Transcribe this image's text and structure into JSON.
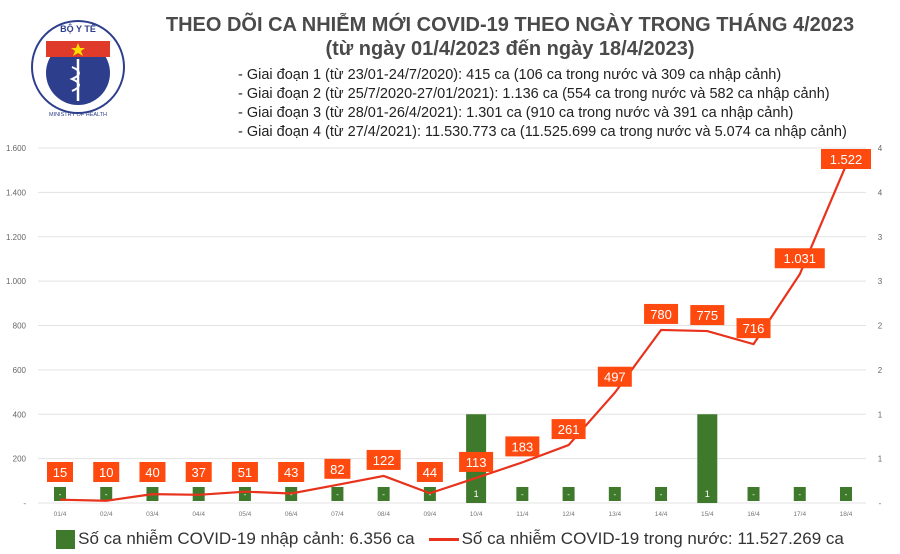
{
  "logo": {
    "top_text": "BỘ Y TẾ",
    "bottom_text": "MINISTRY OF HEALTH"
  },
  "title": "THEO DÕI CA NHIỄM MỚI COVID-19 THEO NGÀY TRONG THÁNG 4/2023",
  "subtitle": "(từ ngày 01/4/2023 đến ngày 18/4/2023)",
  "notes": [
    "- Giai đoạn 1 (từ 23/01-24/7/2020): 415 ca (106 ca trong nước và 309 ca nhập cảnh)",
    "- Giai đoạn 2 (từ 25/7/2020-27/01/2021): 1.136 ca (554 ca trong nước và 582 ca nhập cảnh)",
    "- Giai đoạn 3 (từ 28/01-26/4/2021): 1.301 ca (910 ca trong nước và 391 ca nhập cảnh)",
    "- Giai đoạn 4 (từ 27/4/2021): 11.530.773 ca (11.525.699 ca trong nước và 5.074 ca nhập cảnh)"
  ],
  "chart_data": {
    "type": "bar+line",
    "categories": [
      "01/4",
      "02/4",
      "03/4",
      "04/4",
      "05/4",
      "06/4",
      "07/4",
      "08/4",
      "09/4",
      "10/4",
      "11/4",
      "12/4",
      "13/4",
      "14/4",
      "15/4",
      "16/4",
      "17/4",
      "18/4"
    ],
    "series": [
      {
        "name": "Số ca nhiễm COVID-19 nhập cảnh: 6.356 ca",
        "type": "bar",
        "axis": "right",
        "color": "#3f7a2c",
        "values": [
          0,
          0,
          0,
          0,
          0,
          0,
          0,
          0,
          0,
          1,
          0,
          0,
          0,
          0,
          1,
          0,
          0,
          0
        ],
        "labels": [
          "-",
          "-",
          "-",
          "-",
          "-",
          "-",
          "-",
          "-",
          "-",
          "1",
          "-",
          "-",
          "-",
          "-",
          "1",
          "-",
          "-",
          "-"
        ]
      },
      {
        "name": "Số ca nhiễm COVID-19 trong nước: 11.527.269 ca",
        "type": "line",
        "axis": "left",
        "color": "#e8321c",
        "values": [
          15,
          10,
          40,
          37,
          51,
          43,
          82,
          122,
          44,
          113,
          183,
          261,
          497,
          780,
          775,
          716,
          1031,
          1522
        ],
        "labels": [
          "15",
          "10",
          "40",
          "37",
          "51",
          "43",
          "82",
          "122",
          "44",
          "113",
          "183",
          "261",
          "497",
          "780",
          "775",
          "716",
          "1.031",
          "1.522"
        ]
      }
    ],
    "left_axis": {
      "range": [
        0,
        1600
      ],
      "ticks": [
        0,
        200,
        400,
        600,
        800,
        1000,
        1200,
        1400,
        1600
      ],
      "tick_labels": [
        "-",
        "200",
        "400",
        "600",
        "800",
        "1.000",
        "1.200",
        "1.400",
        "1.600"
      ]
    },
    "right_axis": {
      "range": [
        0,
        4
      ],
      "ticks": [
        0,
        0.5,
        1,
        1.5,
        2,
        2.5,
        3,
        3.5,
        4
      ],
      "tick_labels": [
        "-",
        "1",
        "1",
        "2",
        "2",
        "3",
        "3",
        "4",
        "4"
      ]
    },
    "grid": true,
    "legend": "bottom",
    "label_color": "#ff4a0f"
  }
}
